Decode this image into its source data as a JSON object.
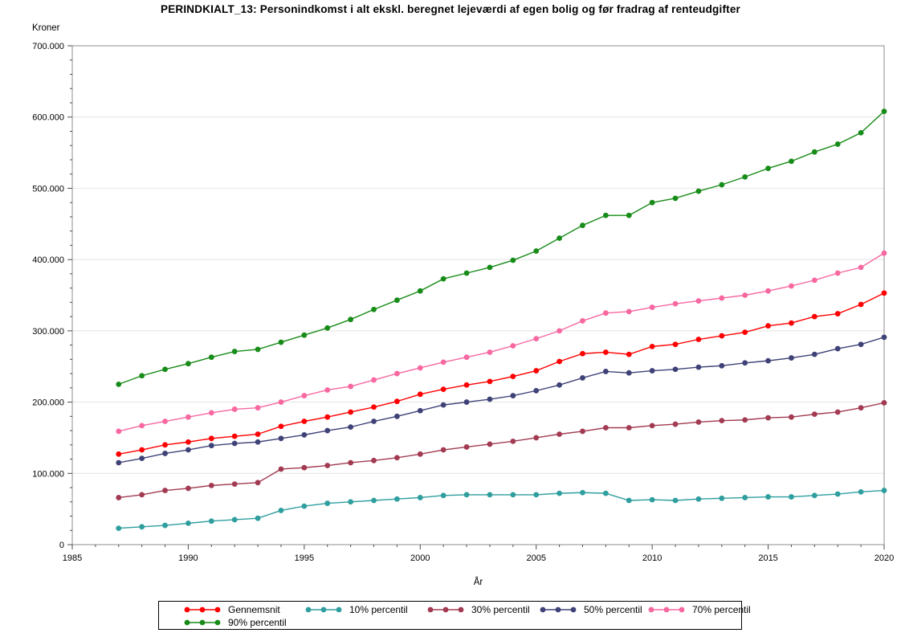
{
  "chart_data": {
    "type": "line",
    "title": "PERINDKIALT_13: Personindkomst i alt ekskl. beregnet lejeværdi af egen bolig og før fradrag af renteudgifter",
    "xlabel": "År",
    "ylabel": "Kroner",
    "grid": "horizontal",
    "legend_position": "bottom",
    "xlim": [
      1985,
      2020
    ],
    "ylim": [
      0,
      700000
    ],
    "x_major_ticks": [
      1985,
      1990,
      1995,
      2000,
      2005,
      2010,
      2015,
      2020
    ],
    "x_tick_labels": [
      "1985",
      "1990",
      "1995",
      "2000",
      "2005",
      "2010",
      "2015",
      "2020"
    ],
    "x_minor_tick_step": 1,
    "y_major_ticks": [
      0,
      100000,
      200000,
      300000,
      400000,
      500000,
      600000,
      700000
    ],
    "y_tick_labels": [
      "0",
      "100.000",
      "200.000",
      "300.000",
      "400.000",
      "500.000",
      "600.000",
      "700.000"
    ],
    "y_minor_tick_step": 20000,
    "x": [
      1987,
      1988,
      1989,
      1990,
      1991,
      1992,
      1993,
      1994,
      1995,
      1996,
      1997,
      1998,
      1999,
      2000,
      2001,
      2002,
      2003,
      2004,
      2005,
      2006,
      2007,
      2008,
      2009,
      2010,
      2011,
      2012,
      2013,
      2014,
      2015,
      2016,
      2017,
      2018,
      2019,
      2020
    ],
    "series": [
      {
        "name": "Gennemsnit",
        "color": "#FF0000",
        "values": [
          127000,
          133000,
          140000,
          144000,
          149000,
          152000,
          155000,
          166000,
          173000,
          179000,
          186000,
          193000,
          201000,
          211000,
          218000,
          224000,
          229000,
          236000,
          244000,
          257000,
          268000,
          270000,
          267000,
          278000,
          281000,
          288000,
          293000,
          298000,
          307000,
          311000,
          320000,
          324000,
          337000,
          353000
        ]
      },
      {
        "name": "10% percentil",
        "color": "#2F9E9E",
        "values": [
          23000,
          25000,
          27000,
          30000,
          33000,
          35000,
          37000,
          48000,
          54000,
          58000,
          60000,
          62000,
          64000,
          66000,
          69000,
          70000,
          70000,
          70000,
          70000,
          72000,
          73000,
          72000,
          62000,
          63000,
          62000,
          64000,
          65000,
          66000,
          67000,
          67000,
          69000,
          71000,
          74000,
          76000
        ]
      },
      {
        "name": "30% percentil",
        "color": "#A23B52",
        "values": [
          66000,
          70000,
          76000,
          79000,
          83000,
          85000,
          87000,
          106000,
          108000,
          111000,
          115000,
          118000,
          122000,
          127000,
          133000,
          137000,
          141000,
          145000,
          150000,
          155000,
          159000,
          164000,
          164000,
          167000,
          169000,
          172000,
          174000,
          175000,
          178000,
          179000,
          183000,
          186000,
          192000,
          199000
        ]
      },
      {
        "name": "50% percentil",
        "color": "#3F4277",
        "values": [
          115000,
          121000,
          128000,
          133000,
          139000,
          142000,
          144000,
          149000,
          154000,
          160000,
          165000,
          173000,
          180000,
          188000,
          196000,
          200000,
          204000,
          209000,
          216000,
          224000,
          234000,
          243000,
          241000,
          244000,
          246000,
          249000,
          251000,
          255000,
          258000,
          262000,
          267000,
          275000,
          281000,
          291000
        ]
      },
      {
        "name": "70% percentil",
        "color": "#F768A1",
        "values": [
          159000,
          167000,
          173000,
          179000,
          185000,
          190000,
          192000,
          200000,
          209000,
          217000,
          222000,
          231000,
          240000,
          248000,
          256000,
          263000,
          270000,
          279000,
          289000,
          300000,
          314000,
          325000,
          327000,
          333000,
          338000,
          342000,
          346000,
          350000,
          356000,
          363000,
          371000,
          381000,
          389000,
          409000
        ]
      },
      {
        "name": "90% percentil",
        "color": "#188C18",
        "values": [
          225000,
          237000,
          246000,
          254000,
          263000,
          271000,
          274000,
          284000,
          294000,
          304000,
          316000,
          330000,
          343000,
          356000,
          373000,
          381000,
          389000,
          399000,
          412000,
          430000,
          448000,
          462000,
          462000,
          480000,
          486000,
          496000,
          505000,
          516000,
          528000,
          538000,
          551000,
          562000,
          578000,
          608000
        ]
      }
    ]
  }
}
